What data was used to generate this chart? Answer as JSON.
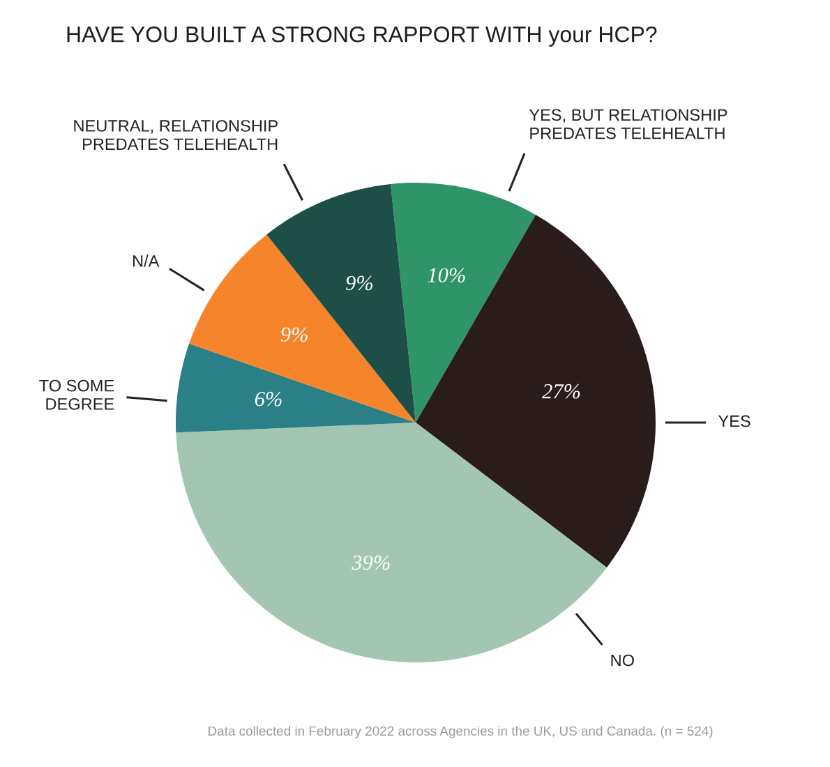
{
  "chart_data": {
    "type": "pie",
    "title": "HAVE YOU BUILT A STRONG RAPPORT WITH your HCP?",
    "categories": [
      "YES, BUT RELATIONSHIP\nPREDATES TELEHEALTH",
      "YES",
      "NO",
      "TO SOME\nDEGREE",
      "N/A",
      "NEUTRAL, RELATIONSHIP\nPREDATES TELEHEALTH"
    ],
    "values": [
      10,
      27,
      39,
      6,
      9,
      9
    ],
    "colors": [
      "#2f9468",
      "#2b1c1c",
      "#a3c6b2",
      "#2b7f86",
      "#f5842a",
      "#1d4e48"
    ],
    "value_labels": [
      "10%",
      "27%",
      "39%",
      "6%",
      "9%",
      "9%"
    ],
    "annotations": [
      "Data collected in February 2022 across Agencies in the UK, US and Canada. (n = 524)"
    ]
  }
}
